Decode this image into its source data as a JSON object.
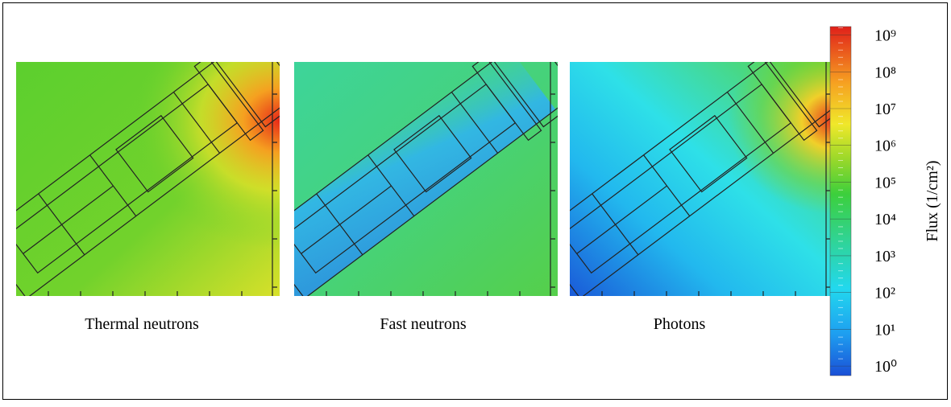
{
  "panels": [
    {
      "label": "Thermal neutrons"
    },
    {
      "label": "Fast neutrons"
    },
    {
      "label": "Photons"
    }
  ],
  "colorbar": {
    "label": "Flux (1/cm²)",
    "scale": "log",
    "lim": [
      0.55,
      1700000000
    ],
    "ticks": [
      {
        "value": 1,
        "label": "10⁰"
      },
      {
        "value": 10,
        "label": "10¹"
      },
      {
        "value": 100,
        "label": "10²"
      },
      {
        "value": 1000,
        "label": "10³"
      },
      {
        "value": 10000,
        "label": "10⁴"
      },
      {
        "value": 100000,
        "label": "10⁵"
      },
      {
        "value": 1000000,
        "label": "10⁶"
      },
      {
        "value": 10000000,
        "label": "10⁷"
      },
      {
        "value": 100000000,
        "label": "10⁸"
      },
      {
        "value": 1000000000,
        "label": "10⁹"
      }
    ]
  }
}
